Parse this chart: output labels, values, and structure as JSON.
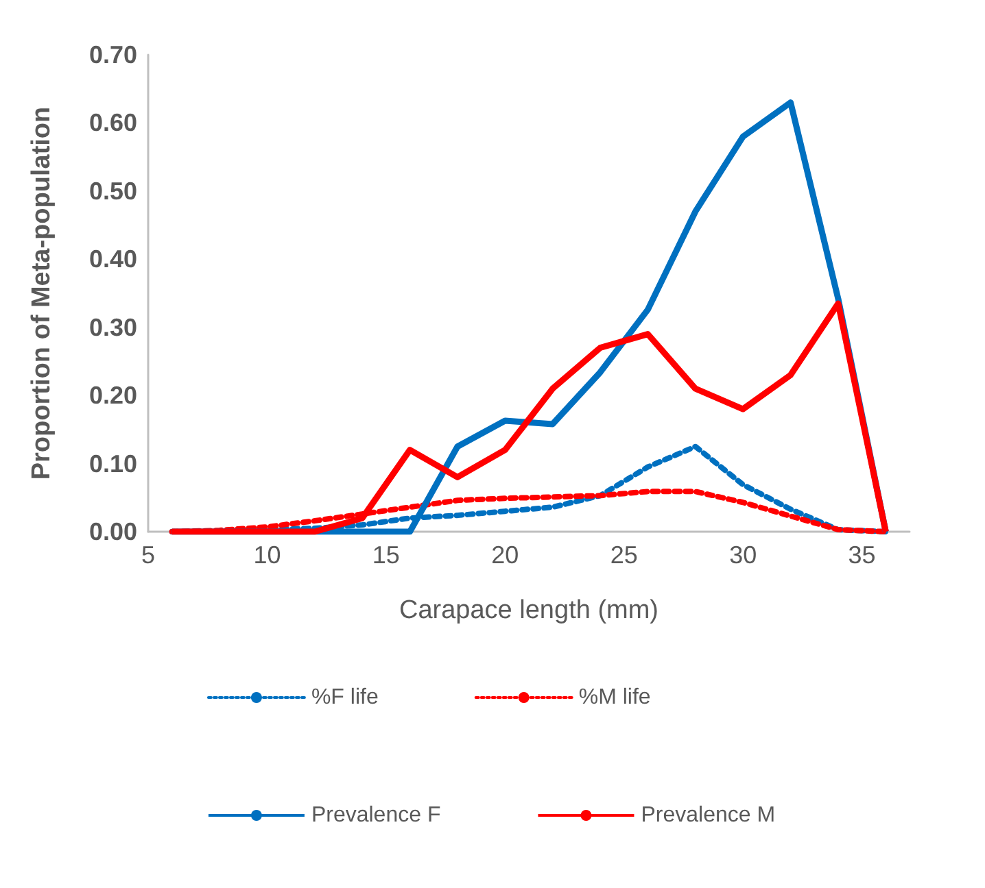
{
  "chart_data": {
    "type": "line",
    "xlabel": "Carapace length (mm)",
    "ylabel": "Proportion of Meta-population",
    "x": [
      6,
      8,
      10,
      12,
      14,
      16,
      18,
      20,
      22,
      24,
      26,
      28,
      30,
      32,
      34,
      36
    ],
    "series": [
      {
        "name": "%F life",
        "color": "#0070c0",
        "line_style": "dotted",
        "values": [
          0,
          0,
          0.003,
          0.005,
          0.01,
          0.02,
          0.024,
          0.03,
          0.036,
          0.053,
          0.095,
          0.125,
          0.069,
          0.033,
          0.003,
          0
        ]
      },
      {
        "name": "%M life",
        "color": "#ff0000",
        "line_style": "dotted",
        "values": [
          0,
          0.002,
          0.007,
          0.016,
          0.026,
          0.036,
          0.046,
          0.049,
          0.051,
          0.053,
          0.059,
          0.059,
          0.043,
          0.023,
          0.003,
          0
        ]
      },
      {
        "name": "Prevalence F",
        "color": "#0070c0",
        "line_style": "solid",
        "values": [
          0,
          0,
          0,
          0,
          0,
          0,
          0.125,
          0.163,
          0.158,
          0.234,
          0.326,
          0.47,
          0.58,
          0.63,
          0.342,
          0
        ]
      },
      {
        "name": "Prevalence M",
        "color": "#ff0000",
        "line_style": "solid",
        "values": [
          0,
          0,
          0,
          0,
          0.02,
          0.12,
          0.08,
          0.12,
          0.21,
          0.27,
          0.29,
          0.21,
          0.18,
          0.23,
          0.335,
          0
        ]
      }
    ],
    "xlim": [
      5,
      37
    ],
    "xticks": [
      5,
      10,
      15,
      20,
      25,
      30,
      35
    ],
    "ylim": [
      0,
      0.7
    ],
    "yticks": [
      {
        "value": 0,
        "label": "0.00"
      },
      {
        "value": 0.1,
        "label": "0.10"
      },
      {
        "value": 0.2,
        "label": "0.20"
      },
      {
        "value": 0.3,
        "label": "0.30"
      },
      {
        "value": 0.4,
        "label": "0.40"
      },
      {
        "value": 0.5,
        "label": "0.50"
      },
      {
        "value": 0.6,
        "label": "0.60"
      },
      {
        "value": 0.7,
        "label": "0.70"
      }
    ],
    "grid": false,
    "legend": "bottom",
    "marker": "none"
  }
}
